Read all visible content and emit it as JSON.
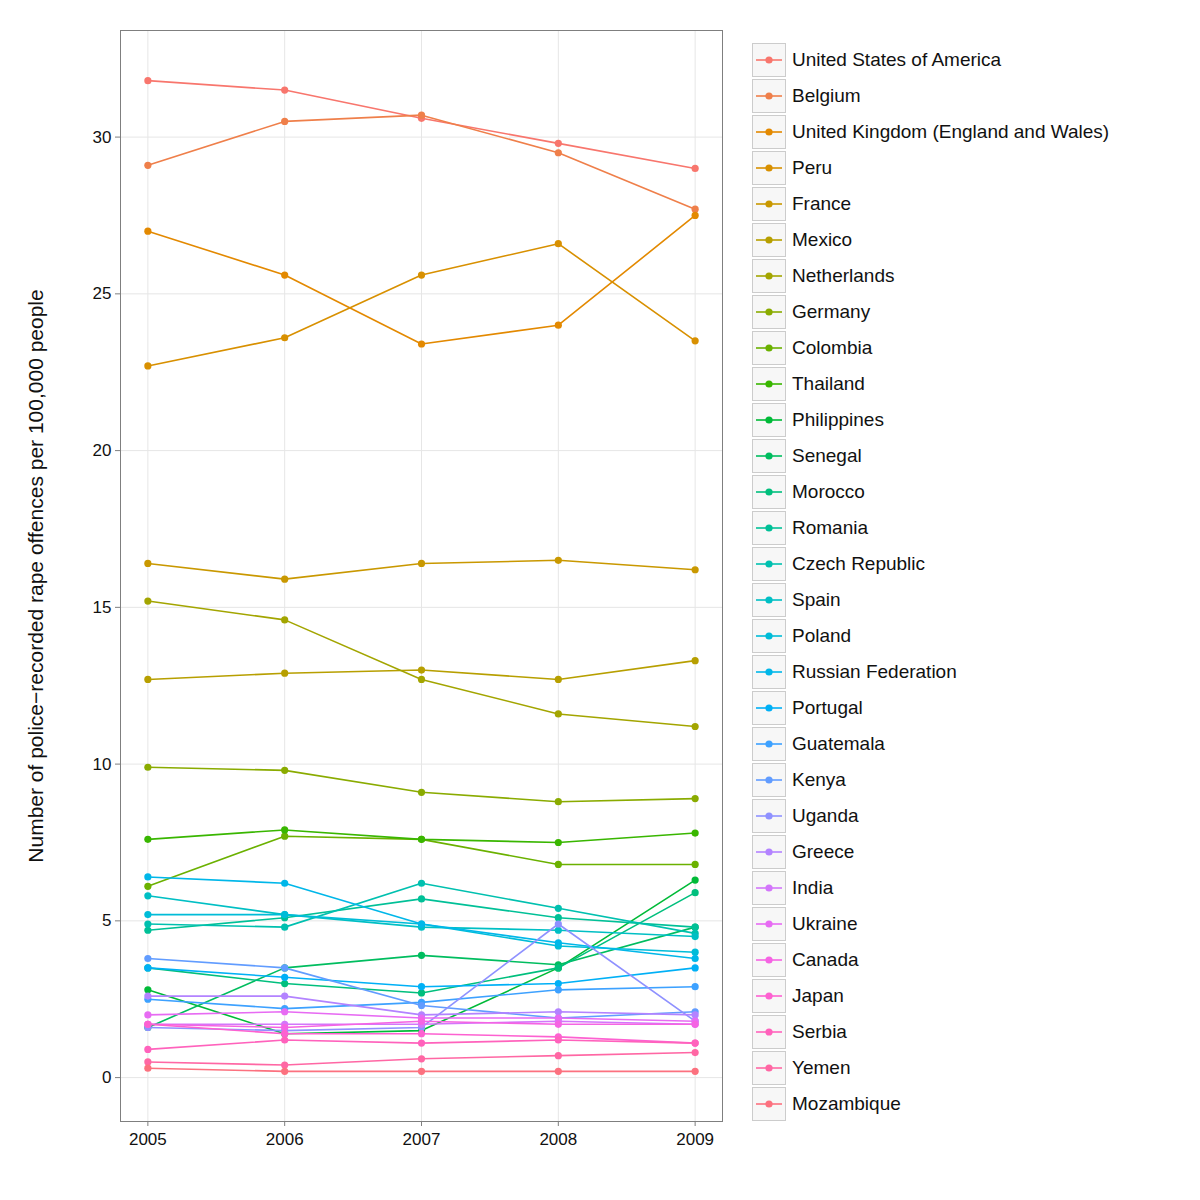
{
  "chart_data": {
    "type": "line",
    "y_label": "Number of police−recorded rape offences per 100,000 people",
    "x": [
      2005,
      2006,
      2007,
      2008,
      2009
    ],
    "xlim": [
      2004.8,
      2009.2
    ],
    "xticks": [
      2005,
      2006,
      2007,
      2008,
      2009
    ],
    "ylim": [
      -1.4,
      33.4
    ],
    "yticks": [
      0,
      5,
      10,
      15,
      20,
      25,
      30
    ],
    "grid": true,
    "legend": "right",
    "marker": "circle",
    "series": [
      {
        "name": "United States of America",
        "color": "#F8766D",
        "values": [
          31.8,
          31.5,
          30.6,
          29.8,
          29.0
        ]
      },
      {
        "name": "Belgium",
        "color": "#EF7F4A",
        "values": [
          29.1,
          30.5,
          30.7,
          29.5,
          27.7
        ]
      },
      {
        "name": "United Kingdom (England and Wales)",
        "color": "#E38900",
        "values": [
          27.0,
          25.6,
          23.4,
          24.0,
          27.5
        ]
      },
      {
        "name": "Peru",
        "color": "#D89000",
        "values": [
          22.7,
          23.6,
          25.6,
          26.6,
          23.5
        ]
      },
      {
        "name": "France",
        "color": "#C99800",
        "values": [
          16.4,
          15.9,
          16.4,
          16.5,
          16.2
        ]
      },
      {
        "name": "Mexico",
        "color": "#B79F00",
        "values": [
          12.7,
          12.9,
          13.0,
          12.7,
          13.3
        ]
      },
      {
        "name": "Netherlands",
        "color": "#A3A500",
        "values": [
          15.2,
          14.6,
          12.7,
          11.6,
          11.2
        ]
      },
      {
        "name": "Germany",
        "color": "#8AAB00",
        "values": [
          9.9,
          9.8,
          9.1,
          8.8,
          8.9
        ]
      },
      {
        "name": "Colombia",
        "color": "#6BB100",
        "values": [
          6.1,
          7.7,
          7.6,
          6.8,
          6.8
        ]
      },
      {
        "name": "Thailand",
        "color": "#39B600",
        "values": [
          7.6,
          7.9,
          7.6,
          7.5,
          7.8
        ]
      },
      {
        "name": "Philippines",
        "color": "#00BA38",
        "values": [
          2.8,
          1.4,
          1.5,
          3.5,
          6.3
        ]
      },
      {
        "name": "Senegal",
        "color": "#00BD5F",
        "values": [
          1.6,
          3.5,
          3.9,
          3.6,
          4.8
        ]
      },
      {
        "name": "Morocco",
        "color": "#00BF7D",
        "values": [
          3.5,
          3.0,
          2.7,
          3.5,
          5.9
        ]
      },
      {
        "name": "Romania",
        "color": "#00C097",
        "values": [
          4.7,
          5.1,
          5.7,
          5.1,
          4.8
        ]
      },
      {
        "name": "Czech Republic",
        "color": "#00C0AF",
        "values": [
          4.9,
          4.8,
          6.2,
          5.4,
          4.6
        ]
      },
      {
        "name": "Spain",
        "color": "#00BFC4",
        "values": [
          5.8,
          5.2,
          4.8,
          4.7,
          4.5
        ]
      },
      {
        "name": "Poland",
        "color": "#00BCD8",
        "values": [
          5.2,
          5.2,
          4.9,
          4.2,
          4.0
        ]
      },
      {
        "name": "Russian Federation",
        "color": "#00B7E9",
        "values": [
          6.4,
          6.2,
          4.9,
          4.3,
          3.8
        ]
      },
      {
        "name": "Portugal",
        "color": "#00B0F6",
        "values": [
          3.5,
          3.2,
          2.9,
          3.0,
          3.5
        ]
      },
      {
        "name": "Guatemala",
        "color": "#3DA1FF",
        "values": [
          2.5,
          2.2,
          2.4,
          2.8,
          2.9
        ]
      },
      {
        "name": "Kenya",
        "color": "#619CFF",
        "values": [
          3.8,
          3.5,
          2.3,
          1.9,
          2.1
        ]
      },
      {
        "name": "Uganda",
        "color": "#8F91FF",
        "values": [
          1.6,
          1.5,
          1.6,
          4.9,
          1.8
        ]
      },
      {
        "name": "Greece",
        "color": "#B383FF",
        "values": [
          2.6,
          2.6,
          2.0,
          2.1,
          2.0
        ]
      },
      {
        "name": "India",
        "color": "#D376FB",
        "values": [
          1.7,
          1.7,
          1.7,
          1.8,
          1.7
        ]
      },
      {
        "name": "Ukraine",
        "color": "#E76BF3",
        "values": [
          2.0,
          2.1,
          1.9,
          1.9,
          1.8
        ]
      },
      {
        "name": "Canada",
        "color": "#F564E3",
        "values": [
          1.7,
          1.6,
          1.8,
          1.7,
          1.7
        ]
      },
      {
        "name": "Japan",
        "color": "#FD61D1",
        "values": [
          1.7,
          1.4,
          1.4,
          1.3,
          1.1
        ]
      },
      {
        "name": "Serbia",
        "color": "#FF62BC",
        "values": [
          0.9,
          1.2,
          1.1,
          1.2,
          1.1
        ]
      },
      {
        "name": "Yemen",
        "color": "#FF67A4",
        "values": [
          0.5,
          0.4,
          0.6,
          0.7,
          0.8
        ]
      },
      {
        "name": "Mozambique",
        "color": "#FC717F",
        "values": [
          0.3,
          0.2,
          0.2,
          0.2,
          0.2
        ]
      }
    ]
  }
}
